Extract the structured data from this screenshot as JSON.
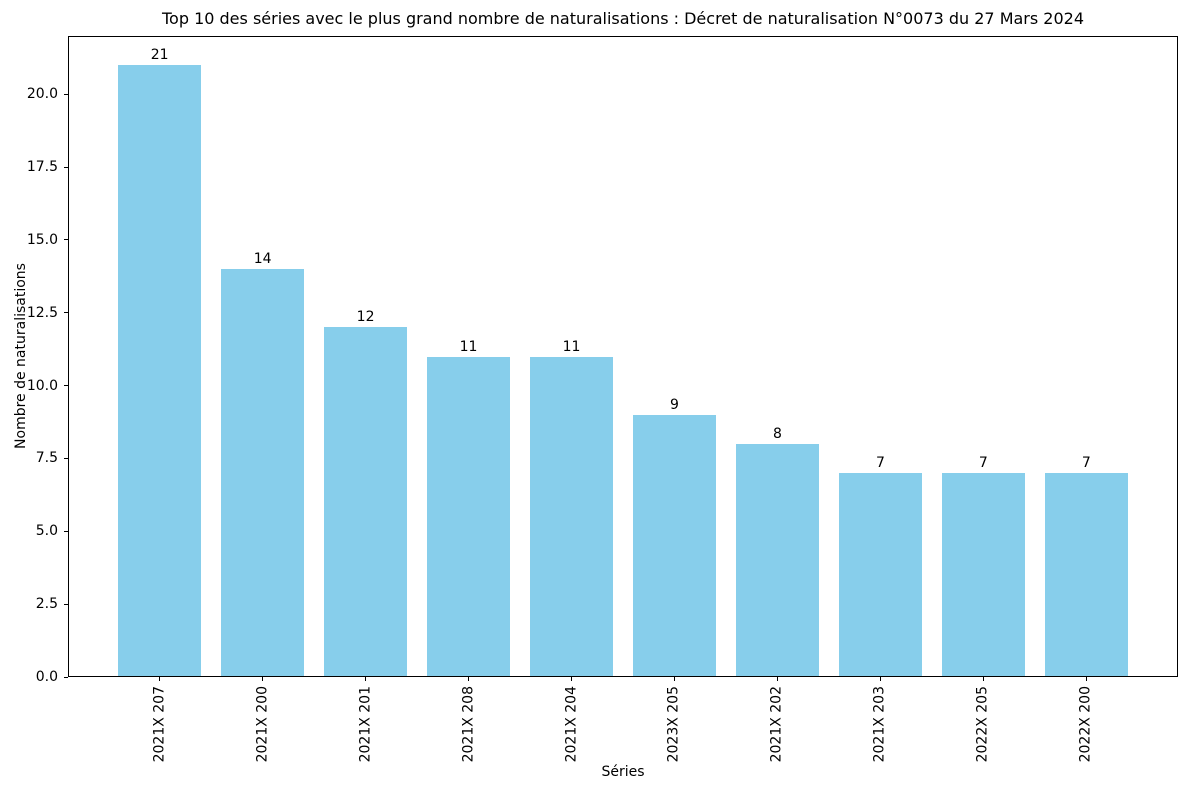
{
  "figure": {
    "background": "#ffffff",
    "text_color": "#000000"
  },
  "chart_data": {
    "type": "bar",
    "title": "Top 10 des séries avec le plus grand nombre de naturalisations : Décret de naturalisation N°0073 du 27 Mars 2024",
    "xlabel": "Séries",
    "ylabel": "Nombre de naturalisations",
    "categories": [
      "2021X 207",
      "2021X 200",
      "2021X 201",
      "2021X 208",
      "2021X 204",
      "2023X 205",
      "2021X 202",
      "2021X 203",
      "2022X 205",
      "2022X 200"
    ],
    "values": [
      21,
      14,
      12,
      11,
      11,
      9,
      8,
      7,
      7,
      7
    ],
    "bar_labels": [
      "21",
      "14",
      "12",
      "11",
      "11",
      "9",
      "8",
      "7",
      "7",
      "7"
    ],
    "bar_color": "#87CEEB",
    "ylim": [
      0,
      22
    ],
    "yticks": [
      0,
      2.5,
      5,
      7.5,
      10,
      12.5,
      15,
      17.5,
      20
    ],
    "ytick_labels": [
      "0.0",
      "2.5",
      "5.0",
      "7.5",
      "10.0",
      "12.5",
      "15.0",
      "17.5",
      "20.0"
    ],
    "bar_width_fraction": 0.8,
    "grid": false,
    "legend_position": "none"
  }
}
